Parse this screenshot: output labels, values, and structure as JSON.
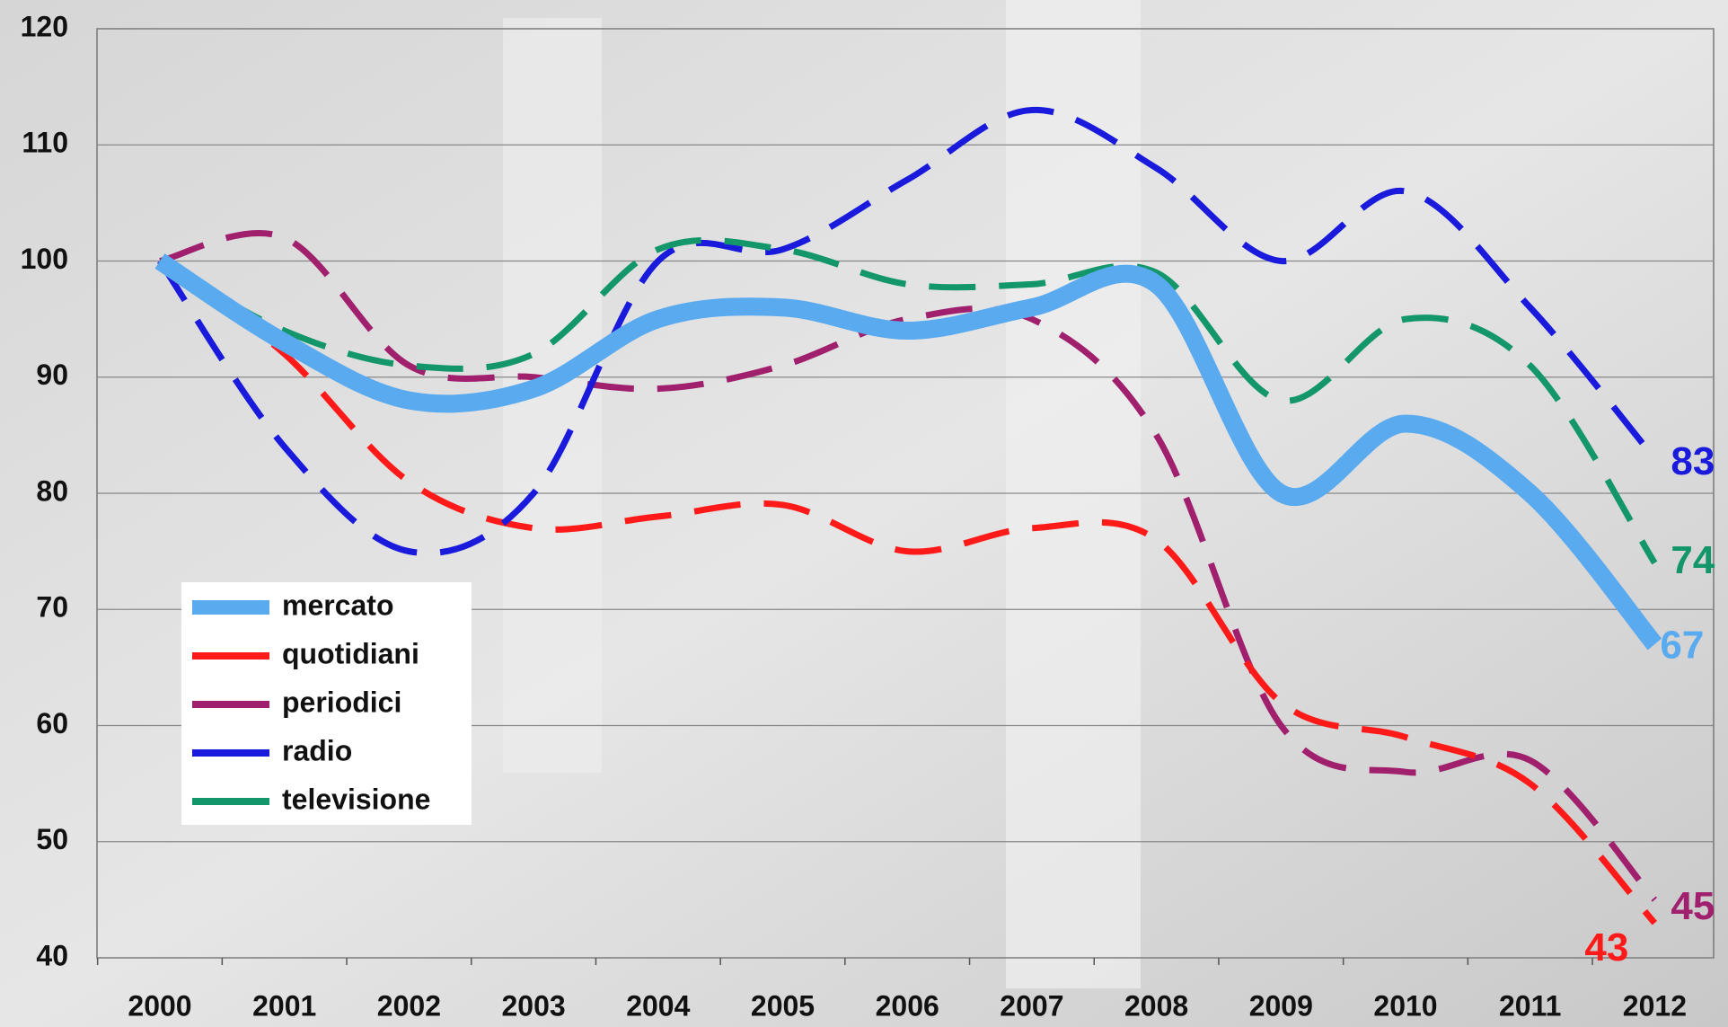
{
  "chart_data": {
    "type": "line",
    "categories": [
      "2000",
      "2001",
      "2002",
      "2003",
      "2004",
      "2005",
      "2006",
      "2007",
      "2008",
      "2009",
      "2010",
      "2011",
      "2012"
    ],
    "series": [
      {
        "name": "mercato",
        "color": "#5aaaf0",
        "values": [
          100,
          93,
          88,
          89,
          95,
          96,
          94,
          96,
          98,
          80,
          86,
          80,
          67
        ]
      },
      {
        "name": "quotidiani",
        "color": "#ff1a1a",
        "values": [
          100,
          92,
          81,
          77,
          78,
          79,
          75,
          77,
          76,
          62,
          59,
          55,
          43
        ]
      },
      {
        "name": "periodici",
        "color": "#a0206e",
        "values": [
          100,
          102,
          91,
          90,
          89,
          91,
          95,
          95,
          85,
          60,
          56,
          57,
          45
        ]
      },
      {
        "name": "radio",
        "color": "#1a1adc",
        "values": [
          100,
          84,
          75,
          80,
          100,
          101,
          107,
          113,
          108,
          100,
          106,
          96,
          83
        ]
      },
      {
        "name": "televisione",
        "color": "#12966a",
        "values": [
          100,
          94,
          91,
          92,
          101,
          101,
          98,
          98,
          99,
          88,
          95,
          91,
          74
        ]
      }
    ],
    "ylim": [
      40,
      120
    ],
    "yticks": [
      40,
      50,
      60,
      70,
      80,
      90,
      100,
      110,
      120
    ],
    "grid": true
  }
}
